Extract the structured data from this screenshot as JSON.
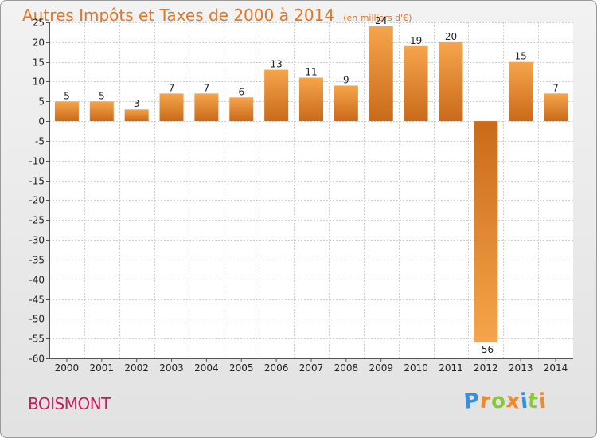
{
  "chart_data": {
    "type": "bar",
    "title": "Autres Impôts et Taxes de 2000 à 2014",
    "subtitle": "(en milliers d'€)",
    "categories": [
      "2000",
      "2001",
      "2002",
      "2003",
      "2004",
      "2005",
      "2006",
      "2007",
      "2008",
      "2009",
      "2010",
      "2011",
      "2012",
      "2013",
      "2014"
    ],
    "values": [
      5,
      5,
      3,
      7,
      7,
      6,
      13,
      11,
      9,
      24,
      19,
      20,
      -56,
      15,
      7
    ],
    "ylim": [
      -60,
      25
    ],
    "yticks": [
      25,
      20,
      15,
      10,
      5,
      0,
      -5,
      -10,
      -15,
      -20,
      -25,
      -30,
      -35,
      -40,
      -45,
      -50,
      -55,
      -60
    ],
    "grid": true,
    "colors": {
      "bar_light": "#f6a54c",
      "bar_dark": "#c96a1a",
      "title": "#e0782a",
      "place": "#c41e5f"
    }
  },
  "footer": {
    "place": "BOISMONT",
    "logo_letters": [
      {
        "ch": "P",
        "color": "#3a8fd6"
      },
      {
        "ch": "r",
        "color": "#f08a2a"
      },
      {
        "ch": "o",
        "color": "#8cc63f"
      },
      {
        "ch": "x",
        "color": "#f08a2a"
      },
      {
        "ch": "i",
        "color": "#3a8fd6"
      },
      {
        "ch": "t",
        "color": "#8cc63f"
      },
      {
        "ch": "i",
        "color": "#f08a2a"
      }
    ]
  }
}
